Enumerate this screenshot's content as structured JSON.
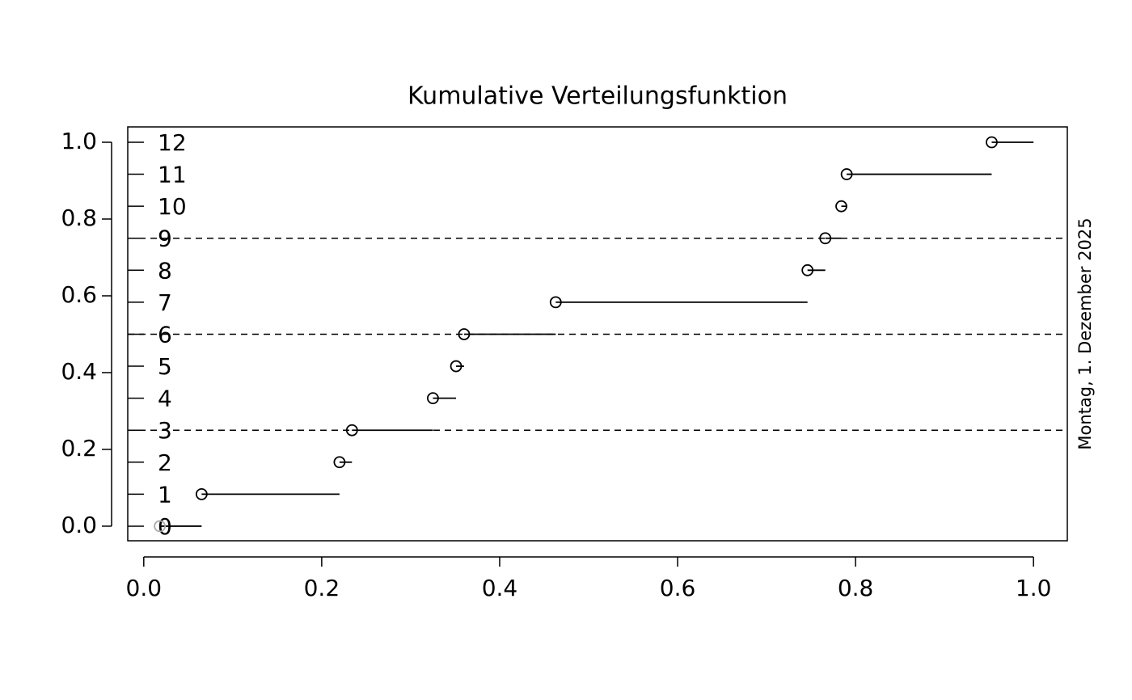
{
  "chart_data": {
    "type": "step",
    "title": "Kumulative Verteilungsfunktion",
    "side_note": "Montag, 1. Dezember 2025",
    "x": [
      0.018,
      0.065,
      0.22,
      0.234,
      0.325,
      0.351,
      0.36,
      0.463,
      0.746,
      0.766,
      0.784,
      0.79,
      0.953
    ],
    "x_end": 1.0,
    "values": [
      0,
      0.0833,
      0.1667,
      0.25,
      0.3333,
      0.4167,
      0.5,
      0.5833,
      0.6667,
      0.75,
      0.8333,
      0.9167,
      1
    ],
    "step_labels": [
      "0",
      "1",
      "2",
      "3",
      "4",
      "5",
      "6",
      "7",
      "8",
      "9",
      "10",
      "11",
      "12"
    ],
    "color": "#000000",
    "first_point_color": "#aaaaaa",
    "hlines": [
      0.25,
      0.5,
      0.75
    ],
    "xlim": [
      -0.018,
      1.038
    ],
    "ylim": [
      -0.038,
      1.04
    ],
    "xticks": [
      {
        "value": 0,
        "label": "0.0"
      },
      0.2,
      0.4,
      0.6,
      0.8,
      {
        "value": 1,
        "label": "1.0"
      }
    ],
    "yticks": [
      {
        "value": 0,
        "label": "0.0"
      },
      0.2,
      0.4,
      0.6,
      0.8,
      {
        "value": 1,
        "label": "1.0"
      }
    ]
  }
}
